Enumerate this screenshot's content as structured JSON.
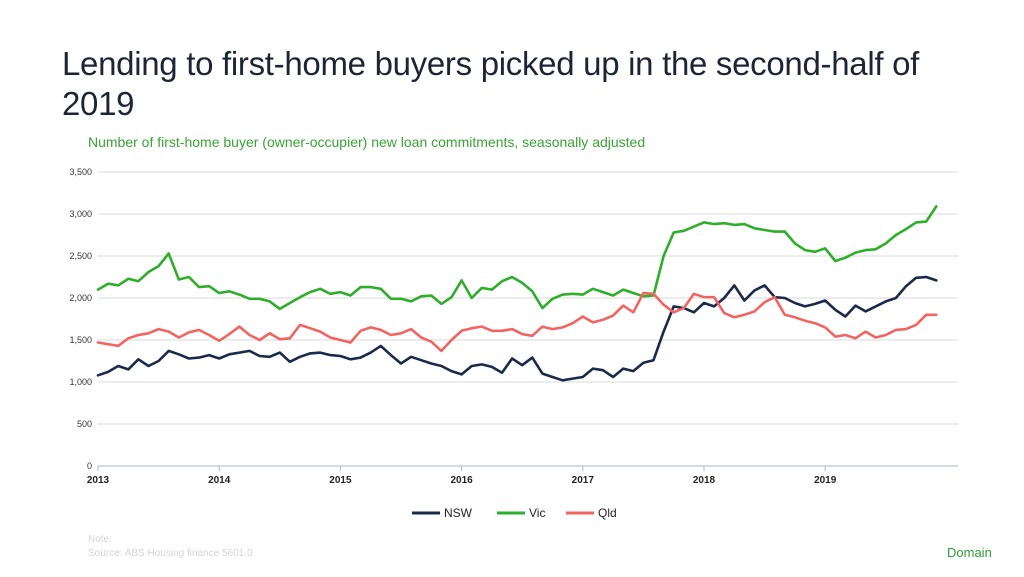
{
  "title": "Lending to first-home buyers picked up in the second-half of 2019",
  "subtitle": "Number of first-home buyer (owner-occupier) new loan commitments, seasonally adjusted",
  "note_label": "Note:",
  "source": "Source: ABS Housing finance 5601.0",
  "brand": "Domain",
  "chart_data": {
    "type": "line",
    "title": "Lending to first-home buyers picked up in the second-half of 2019",
    "subtitle": "Number of first-home buyer (owner-occupier) new loan commitments, seasonally adjusted",
    "xlabel": "",
    "ylabel": "",
    "ylim": [
      0,
      3500
    ],
    "yticks": [
      0,
      500,
      1000,
      1500,
      2000,
      2500,
      3000,
      3500
    ],
    "ytick_labels": [
      "0",
      "500",
      "1,000",
      "1,500",
      "2,000",
      "2,500",
      "3,000",
      "3,500"
    ],
    "xticks": [
      "2013",
      "2014",
      "2015",
      "2016",
      "2017",
      "2018",
      "2019"
    ],
    "x_start": "2013-01",
    "frequency": "monthly",
    "grid": "horizontal",
    "legend_position": "bottom",
    "colors": {
      "NSW": "#1b2a4a",
      "Vic": "#2eae2b",
      "Qld": "#f26461"
    },
    "series": [
      {
        "name": "NSW",
        "values": [
          1080,
          1120,
          1190,
          1150,
          1270,
          1190,
          1250,
          1370,
          1330,
          1280,
          1290,
          1320,
          1280,
          1330,
          1350,
          1370,
          1310,
          1300,
          1350,
          1240,
          1300,
          1340,
          1350,
          1320,
          1310,
          1270,
          1290,
          1350,
          1430,
          1320,
          1220,
          1300,
          1260,
          1220,
          1190,
          1130,
          1090,
          1190,
          1210,
          1180,
          1110,
          1280,
          1200,
          1290,
          1100,
          1060,
          1020,
          1040,
          1060,
          1160,
          1140,
          1060,
          1160,
          1130,
          1230,
          1260,
          1600,
          1900,
          1880,
          1830,
          1940,
          1900,
          2000,
          2150,
          1970,
          2090,
          2150,
          2010,
          2000,
          1940,
          1900,
          1930,
          1970,
          1860,
          1780,
          1910,
          1840,
          1900,
          1960,
          2000,
          2140,
          2240,
          2250,
          2210
        ]
      },
      {
        "name": "Vic",
        "values": [
          2100,
          2170,
          2150,
          2230,
          2200,
          2310,
          2380,
          2530,
          2220,
          2250,
          2130,
          2140,
          2060,
          2080,
          2040,
          1990,
          1990,
          1960,
          1870,
          1940,
          2010,
          2070,
          2110,
          2050,
          2070,
          2030,
          2130,
          2130,
          2110,
          1990,
          1990,
          1960,
          2020,
          2030,
          1930,
          2010,
          2210,
          2000,
          2120,
          2100,
          2200,
          2250,
          2180,
          2080,
          1880,
          1990,
          2040,
          2050,
          2040,
          2110,
          2070,
          2030,
          2100,
          2060,
          2020,
          2030,
          2500,
          2780,
          2800,
          2850,
          2900,
          2880,
          2890,
          2870,
          2880,
          2830,
          2810,
          2790,
          2790,
          2650,
          2570,
          2550,
          2590,
          2440,
          2480,
          2540,
          2570,
          2580,
          2650,
          2750,
          2820,
          2900,
          2910,
          3090
        ]
      },
      {
        "name": "Qld",
        "values": [
          1470,
          1450,
          1430,
          1520,
          1560,
          1580,
          1630,
          1600,
          1530,
          1590,
          1620,
          1560,
          1490,
          1570,
          1660,
          1560,
          1500,
          1580,
          1510,
          1520,
          1680,
          1640,
          1600,
          1530,
          1500,
          1470,
          1610,
          1650,
          1620,
          1560,
          1580,
          1630,
          1530,
          1480,
          1370,
          1500,
          1610,
          1640,
          1660,
          1610,
          1610,
          1630,
          1570,
          1550,
          1660,
          1630,
          1650,
          1700,
          1780,
          1710,
          1740,
          1790,
          1910,
          1830,
          2060,
          2050,
          1920,
          1830,
          1880,
          2050,
          2010,
          2010,
          1820,
          1770,
          1800,
          1840,
          1950,
          2010,
          1800,
          1770,
          1730,
          1700,
          1650,
          1540,
          1560,
          1520,
          1600,
          1530,
          1560,
          1620,
          1630,
          1680,
          1800,
          1800
        ]
      }
    ]
  }
}
